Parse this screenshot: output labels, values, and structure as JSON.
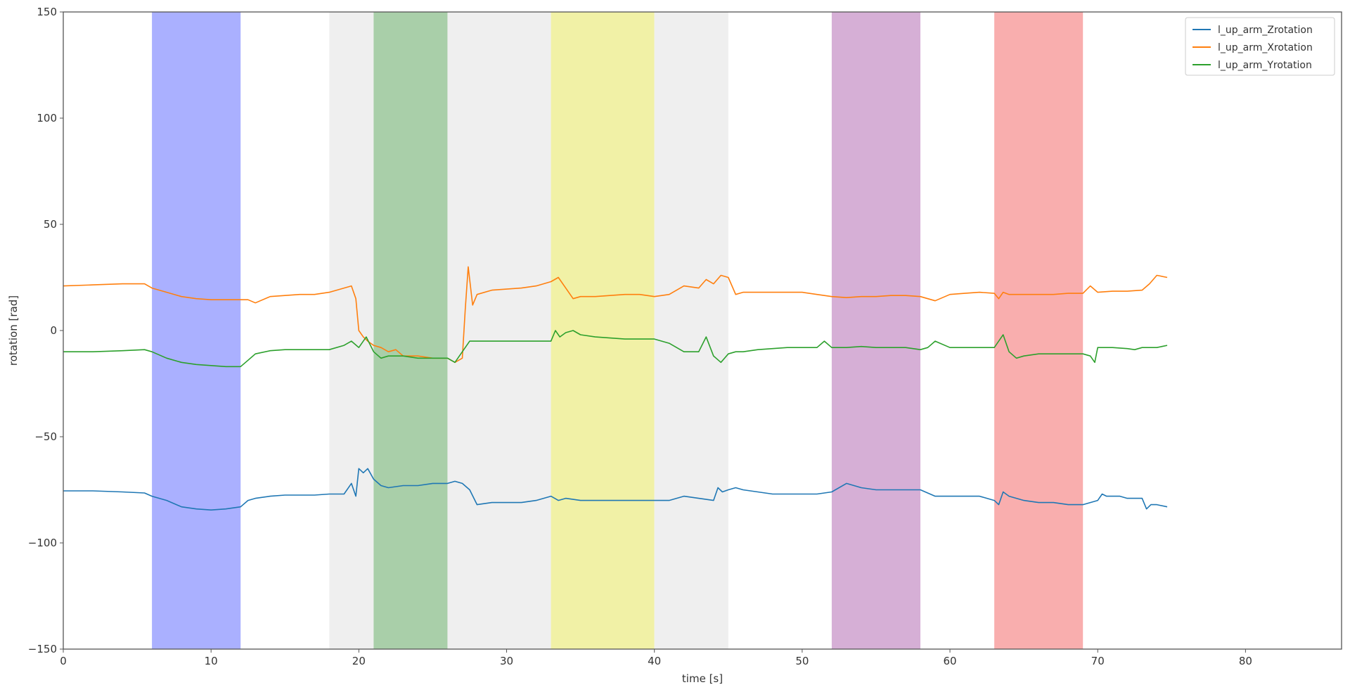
{
  "chart_data": {
    "type": "line",
    "title": "",
    "xlabel": "time [s]",
    "ylabel": "rotation [rad]",
    "xlim": [
      0,
      86.5
    ],
    "ylim": [
      -150,
      150
    ],
    "xticks": [
      0,
      10,
      20,
      30,
      40,
      50,
      60,
      70,
      80
    ],
    "yticks": [
      -150,
      -100,
      -50,
      0,
      50,
      100,
      150
    ],
    "grid": false,
    "legend_position": "top-right",
    "shaded_regions": [
      {
        "x0": 6,
        "x1": 12,
        "color": "#aab0ff"
      },
      {
        "x0": 18,
        "x1": 21,
        "color": "#efefef"
      },
      {
        "x0": 21,
        "x1": 26,
        "color": "#a9cfa9"
      },
      {
        "x0": 26,
        "x1": 33,
        "color": "#efefef"
      },
      {
        "x0": 33,
        "x1": 40,
        "color": "#f1f1a6"
      },
      {
        "x0": 40,
        "x1": 45,
        "color": "#efefef"
      },
      {
        "x0": 52,
        "x1": 58,
        "color": "#d6afd6"
      },
      {
        "x0": 63,
        "x1": 69,
        "color": "#f9aeae"
      }
    ],
    "series": [
      {
        "name": "l_up_arm_Zrotation",
        "color": "#1f77b4",
        "x": [
          0,
          2,
          4,
          5.5,
          6,
          7,
          8,
          9,
          10,
          11,
          12,
          12.5,
          13,
          14,
          15,
          16,
          17,
          18,
          19,
          19.5,
          19.8,
          20,
          20.3,
          20.6,
          21,
          21.5,
          22,
          23,
          24,
          25,
          26,
          26.5,
          27,
          27.5,
          28,
          29,
          30,
          31,
          32,
          33,
          33.5,
          34,
          35,
          36,
          37,
          38,
          39,
          40,
          41,
          42,
          43,
          44,
          44.3,
          44.6,
          45,
          45.5,
          46,
          47,
          48,
          49,
          50,
          51,
          52,
          53,
          54,
          55,
          56,
          57,
          58,
          59,
          60,
          61,
          62,
          63,
          63.3,
          63.6,
          64,
          64.5,
          65,
          66,
          67,
          68,
          69,
          70,
          70.3,
          70.6,
          71,
          71.5,
          72,
          72.5,
          73,
          73.3,
          73.6,
          74,
          74.7
        ],
        "values": [
          -75.5,
          -75.5,
          -76,
          -76.5,
          -78,
          -80,
          -83,
          -84,
          -84.5,
          -84,
          -83,
          -80,
          -79,
          -78,
          -77.5,
          -77.5,
          -77.5,
          -77,
          -77,
          -72,
          -78,
          -65,
          -67,
          -65,
          -70,
          -73,
          -74,
          -73,
          -73,
          -72,
          -72,
          -71,
          -72,
          -75,
          -82,
          -81,
          -81,
          -81,
          -80,
          -78,
          -80,
          -79,
          -80,
          -80,
          -80,
          -80,
          -80,
          -80,
          -80,
          -78,
          -79,
          -80,
          -74,
          -76,
          -75,
          -74,
          -75,
          -76,
          -77,
          -77,
          -77,
          -77,
          -76,
          -72,
          -74,
          -75,
          -75,
          -75,
          -75,
          -78,
          -78,
          -78,
          -78,
          -80,
          -82,
          -76,
          -78,
          -79,
          -80,
          -81,
          -81,
          -82,
          -82,
          -80,
          -77,
          -78,
          -78,
          -78,
          -79,
          -79,
          -79,
          -84,
          -82,
          -82,
          -83
        ]
      },
      {
        "name": "l_up_arm_Xrotation",
        "color": "#ff7f0e",
        "x": [
          0,
          2,
          4,
          5.5,
          6,
          7,
          8,
          9,
          10,
          11,
          12,
          12.5,
          13,
          14,
          15,
          16,
          17,
          18,
          19,
          19.5,
          19.8,
          20,
          20.3,
          20.6,
          21,
          21.5,
          22,
          22.5,
          23,
          24,
          25,
          26,
          26.5,
          27,
          27.2,
          27.4,
          27.7,
          28,
          29,
          30,
          31,
          32,
          33,
          33.5,
          34,
          34.5,
          35,
          36,
          37,
          38,
          39,
          40,
          41,
          42,
          43,
          43.5,
          44,
          44.5,
          45,
          45.5,
          46,
          47,
          48,
          49,
          50,
          51,
          52,
          53,
          54,
          55,
          56,
          57,
          58,
          59,
          60,
          61,
          62,
          63,
          63.3,
          63.6,
          64,
          65,
          66,
          67,
          68,
          69,
          69.5,
          70,
          71,
          72,
          73,
          73.5,
          74,
          74.7
        ],
        "values": [
          21,
          21.5,
          22,
          22,
          20,
          18,
          16,
          15,
          14.5,
          14.5,
          14.5,
          14.5,
          13,
          16,
          16.5,
          17,
          17,
          18,
          20,
          21,
          15,
          0,
          -3,
          -5,
          -7,
          -8,
          -10,
          -9,
          -12,
          -12,
          -13,
          -13,
          -15,
          -13,
          10,
          30,
          12,
          17,
          19,
          19.5,
          20,
          21,
          23,
          25,
          20,
          15,
          16,
          16,
          16.5,
          17,
          17,
          16,
          17,
          21,
          20,
          24,
          22,
          26,
          25,
          17,
          18,
          18,
          18,
          18,
          18,
          17,
          16,
          15.5,
          16,
          16,
          16.5,
          16.5,
          16,
          14,
          17,
          17.5,
          18,
          17.5,
          15,
          18,
          17,
          17,
          17,
          17,
          17.5,
          17.5,
          21,
          18,
          18.5,
          18.5,
          19,
          22,
          26,
          25
        ]
      },
      {
        "name": "l_up_arm_Yrotation",
        "color": "#2ca02c",
        "x": [
          0,
          2,
          4,
          5.5,
          6,
          7,
          8,
          9,
          10,
          11,
          12,
          12.5,
          13,
          14,
          15,
          16,
          17,
          18,
          19,
          19.5,
          20,
          20.5,
          21,
          21.5,
          22,
          23,
          24,
          25,
          26,
          26.5,
          27,
          27.5,
          28,
          29,
          30,
          31,
          32,
          33,
          33.3,
          33.6,
          34,
          34.5,
          35,
          36,
          37,
          38,
          39,
          40,
          41,
          42,
          43,
          43.5,
          44,
          44.5,
          45,
          45.5,
          46,
          47,
          48,
          49,
          50,
          51,
          51.5,
          52,
          53,
          54,
          55,
          56,
          57,
          58,
          58.5,
          59,
          60,
          61,
          62,
          63,
          63.3,
          63.6,
          64,
          64.5,
          65,
          66,
          67,
          68,
          69,
          69.5,
          69.8,
          70,
          70.5,
          71,
          72,
          72.5,
          73,
          74,
          74.7
        ],
        "values": [
          -10,
          -10,
          -9.5,
          -9,
          -10,
          -13,
          -15,
          -16,
          -16.5,
          -17,
          -17,
          -14,
          -11,
          -9.5,
          -9,
          -9,
          -9,
          -9,
          -7,
          -5,
          -8,
          -3,
          -10,
          -13,
          -12,
          -12,
          -13,
          -13,
          -13,
          -15,
          -10,
          -5,
          -5,
          -5,
          -5,
          -5,
          -5,
          -5,
          0,
          -3,
          -1,
          0,
          -2,
          -3,
          -3.5,
          -4,
          -4,
          -4,
          -6,
          -10,
          -10,
          -3,
          -12,
          -15,
          -11,
          -10,
          -10,
          -9,
          -8.5,
          -8,
          -8,
          -8,
          -5,
          -8,
          -8,
          -7.5,
          -8,
          -8,
          -8,
          -9,
          -8,
          -5,
          -8,
          -8,
          -8,
          -8,
          -5,
          -2,
          -10,
          -13,
          -12,
          -11,
          -11,
          -11,
          -11,
          -12,
          -15,
          -8,
          -8,
          -8,
          -8.5,
          -9,
          -8,
          -8,
          -7
        ]
      }
    ]
  }
}
